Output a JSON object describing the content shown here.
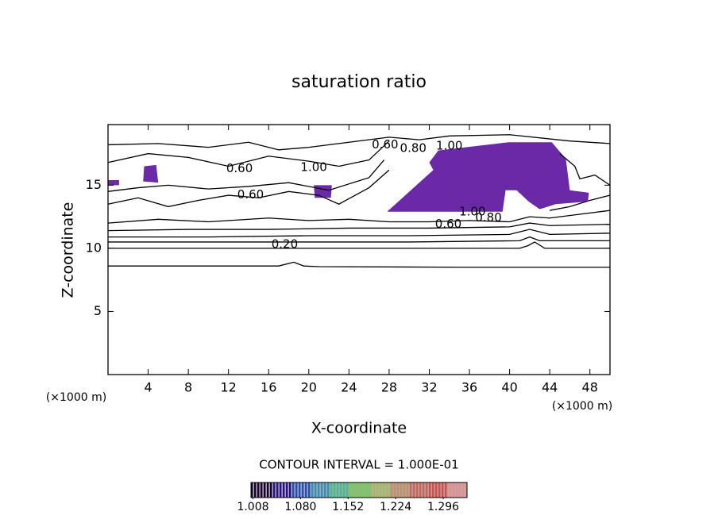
{
  "chart_data": {
    "type": "contour",
    "title": "saturation ratio",
    "xlabel": "X-coordinate",
    "ylabel": "Z-coordinate",
    "unit_label": "(×1000 m)",
    "xlim": [
      0,
      50
    ],
    "ylim": [
      0,
      19.8
    ],
    "xticks": [
      4,
      8,
      12,
      16,
      20,
      24,
      28,
      32,
      36,
      40,
      44,
      48
    ],
    "yticks": [
      5,
      10,
      15
    ],
    "contours": [
      {
        "x": [
          0,
          10,
          17,
          18.5,
          19.5,
          21,
          35,
          50
        ],
        "y": [
          8.6,
          8.6,
          8.6,
          8.9,
          8.6,
          8.55,
          8.5,
          8.5
        ]
      },
      {
        "x": [
          0,
          20,
          41,
          41.8,
          42.5,
          43.5,
          50
        ],
        "y": [
          10,
          10,
          10,
          10.2,
          10.5,
          10,
          10
        ]
      },
      {
        "x": [
          0,
          15,
          30,
          41,
          42,
          43,
          50
        ],
        "y": [
          10.5,
          10.5,
          10.5,
          10.6,
          10.9,
          10.6,
          10.6
        ]
      },
      {
        "x": [
          0,
          10,
          20,
          30,
          40,
          42,
          44,
          50
        ],
        "y": [
          10.9,
          10.9,
          11.0,
          11.0,
          11.1,
          11.5,
          11.1,
          11.2
        ]
      },
      {
        "x": [
          0,
          8,
          16,
          24,
          32,
          40,
          42,
          44,
          50
        ],
        "y": [
          11.4,
          11.5,
          11.5,
          11.6,
          11.6,
          11.7,
          12.0,
          11.8,
          11.9
        ]
      },
      {
        "x": [
          0,
          5,
          10,
          16,
          20,
          24,
          28,
          32,
          36,
          40,
          42,
          44,
          48,
          50
        ],
        "y": [
          12,
          12.3,
          12.1,
          12.4,
          12.2,
          12.3,
          12.1,
          12.1,
          12.2,
          12.1,
          12.5,
          12.4,
          12.8,
          13.0
        ]
      },
      {
        "x": [
          0,
          3,
          6,
          9,
          12,
          15,
          18,
          21,
          23,
          26,
          28
        ],
        "y": [
          13.5,
          14,
          13.3,
          13.8,
          14.2,
          14.0,
          14.5,
          14.2,
          13.5,
          14.8,
          16.2
        ]
      },
      {
        "x": [
          0,
          3,
          6,
          10,
          14,
          18,
          22,
          26,
          27.5
        ],
        "y": [
          14.5,
          14.8,
          15.0,
          14.7,
          14.9,
          15.2,
          14.6,
          15.6,
          17.0
        ]
      },
      {
        "x": [
          0,
          4,
          8,
          12,
          16,
          20,
          23,
          26,
          28
        ],
        "y": [
          16.8,
          17.5,
          17.2,
          16.5,
          17.3,
          16.9,
          16.5,
          17.0,
          18.5
        ]
      },
      {
        "x": [
          0,
          5,
          10,
          14,
          17,
          20,
          24,
          28,
          31,
          34,
          40,
          46,
          50
        ],
        "y": [
          18.2,
          18.3,
          18.0,
          18.4,
          17.8,
          18.0,
          18.4,
          18.8,
          18.6,
          18.9,
          19.0,
          18.5,
          18.3
        ]
      },
      {
        "x": [
          45,
          46.5,
          47,
          48.5,
          50
        ],
        "y": [
          17.5,
          16.5,
          15.5,
          15.8,
          15.0
        ]
      },
      {
        "x": [
          44,
          46,
          48,
          50
        ],
        "y": [
          13.0,
          13.3,
          13.8,
          14.2
        ]
      }
    ],
    "shaded_regions": [
      {
        "color": "#6a2aa8",
        "x": [
          27.8,
          32.4,
          32.0,
          32.9,
          39.9,
          44.2,
          45.6,
          46.0,
          47.9,
          47.8,
          44.6,
          43.0,
          41.9,
          40.7,
          39.6,
          39.3
        ],
        "y": [
          12.9,
          16.2,
          16.8,
          17.75,
          18.4,
          18.4,
          17.1,
          14.6,
          14.4,
          13.7,
          13.5,
          13.1,
          13.7,
          14.6,
          14.6,
          12.9
        ]
      },
      {
        "color": "#6a2aa8",
        "x": [
          3.6,
          4.8,
          5.0,
          3.5
        ],
        "y": [
          16.5,
          16.6,
          15.2,
          15.3
        ]
      },
      {
        "color": "#6a2aa8",
        "x": [
          20.5,
          22.3,
          22.2,
          20.6
        ],
        "y": [
          15.0,
          15.0,
          14.0,
          14.0
        ]
      },
      {
        "color": "#6a2aa8",
        "x": [
          0,
          1.1,
          1.1,
          0
        ],
        "y": [
          15.4,
          15.4,
          15.0,
          15.0
        ]
      }
    ],
    "contour_labels": [
      {
        "label": "0.60",
        "x": 27.6,
        "y": 18.2
      },
      {
        "label": "0.80",
        "x": 30.4,
        "y": 17.9
      },
      {
        "label": "1.00",
        "x": 34.0,
        "y": 18.1
      },
      {
        "label": "0.60",
        "x": 13.1,
        "y": 16.3
      },
      {
        "label": "1.00",
        "x": 20.5,
        "y": 16.4
      },
      {
        "label": "0.60",
        "x": 14.2,
        "y": 14.25
      },
      {
        "label": "1.00",
        "x": 36.3,
        "y": 12.9
      },
      {
        "label": "0.80",
        "x": 37.9,
        "y": 12.4
      },
      {
        "label": "0.60",
        "x": 33.9,
        "y": 11.9
      },
      {
        "label": "0.20",
        "x": 17.6,
        "y": 10.3
      }
    ],
    "contour_interval": "CONTOUR INTERVAL = 1.000E-01",
    "clim": [
      1.005,
      1.332
    ],
    "cticks": [
      1.008,
      {
        "value": 1.08,
        "label": "1.080"
      },
      1.152,
      1.224,
      1.296
    ],
    "colorbar_colors": [
      "#1a0030",
      "#2a1090",
      "#2050c0",
      "#3090c0",
      "#40c090",
      "#70d050",
      "#b0c060",
      "#c89060",
      "#d86050",
      "#e04848",
      "#f09090"
    ]
  }
}
